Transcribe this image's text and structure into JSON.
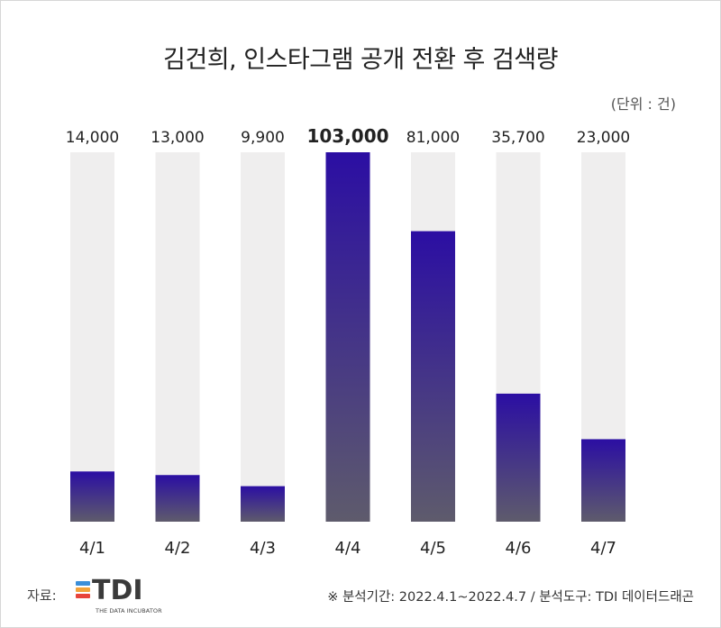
{
  "chart_data": {
    "type": "bar",
    "title": "김건희, 인스타그램 공개 전환 후 검색량",
    "unit_label": "(단위 : 건)",
    "categories": [
      "4/1",
      "4/2",
      "4/3",
      "4/4",
      "4/5",
      "4/6",
      "4/7"
    ],
    "values": [
      14000,
      13000,
      9900,
      103000,
      81000,
      35700,
      23000
    ],
    "value_labels": [
      "14,000",
      "13,000",
      "9,900",
      "103,000",
      "81,000",
      "35,700",
      "23,000"
    ],
    "ylim": [
      0,
      103000
    ],
    "highlight_index": 3,
    "colors": {
      "bar_top": "#2b0ea3",
      "bar_bottom": "#5e5b6c",
      "track": "#efeeee"
    }
  },
  "footer": {
    "source_label": "자료:",
    "logo_text": "TDI",
    "logo_subtext": "THE DATA INCUBATOR",
    "logo_colors": [
      "#3b8fd9",
      "#f2a33a",
      "#e8443a"
    ],
    "note": "※ 분석기간:  2022.4.1~2022.4.7  / 분석도구: TDI 데이터드래곤"
  }
}
